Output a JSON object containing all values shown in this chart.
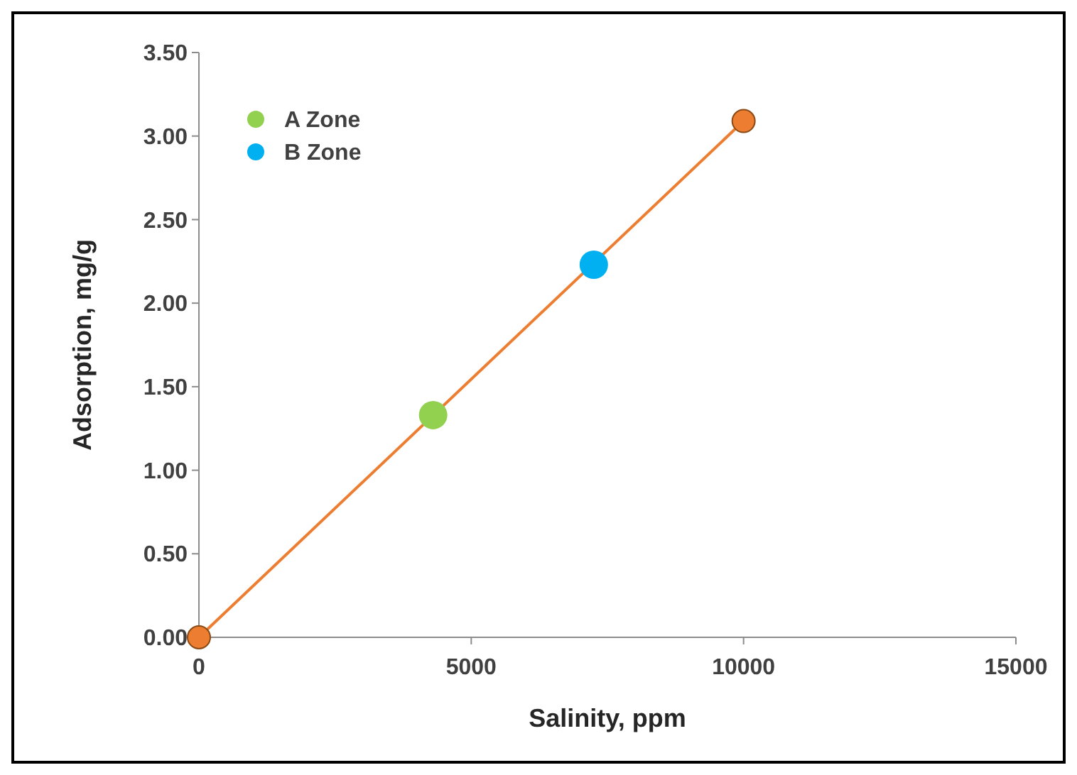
{
  "chart_data": {
    "type": "scatter",
    "xlabel": "Salinity, ppm",
    "ylabel": "Adsorption, mg/g",
    "xlim": [
      0,
      15000
    ],
    "xticks": [
      0,
      5000,
      10000,
      15000
    ],
    "ylim": [
      0,
      3.5
    ],
    "yticks": [
      {
        "value": 0,
        "label": "0.00"
      },
      {
        "value": 0.5,
        "label": "0.50"
      },
      {
        "value": 1,
        "label": "1.00"
      },
      {
        "value": 1.5,
        "label": "1.50"
      },
      {
        "value": 2,
        "label": "2.00"
      },
      {
        "value": 2.5,
        "label": "2.50"
      },
      {
        "value": 3,
        "label": "3.00"
      },
      {
        "value": 3.5,
        "label": "3.50"
      }
    ],
    "grid": false,
    "legend": "top left",
    "marker": "circle",
    "series": [
      {
        "type": "line",
        "color": "#ed7d31",
        "x": [
          0,
          10000
        ],
        "values": [
          0,
          3.09
        ]
      },
      {
        "name": "A Zone",
        "color": "#92d050",
        "x": [
          4300
        ],
        "values": [
          1.33
        ]
      },
      {
        "name": "B Zone",
        "color": "#00b0f0",
        "x": [
          7250
        ],
        "values": [
          2.23
        ]
      }
    ]
  }
}
